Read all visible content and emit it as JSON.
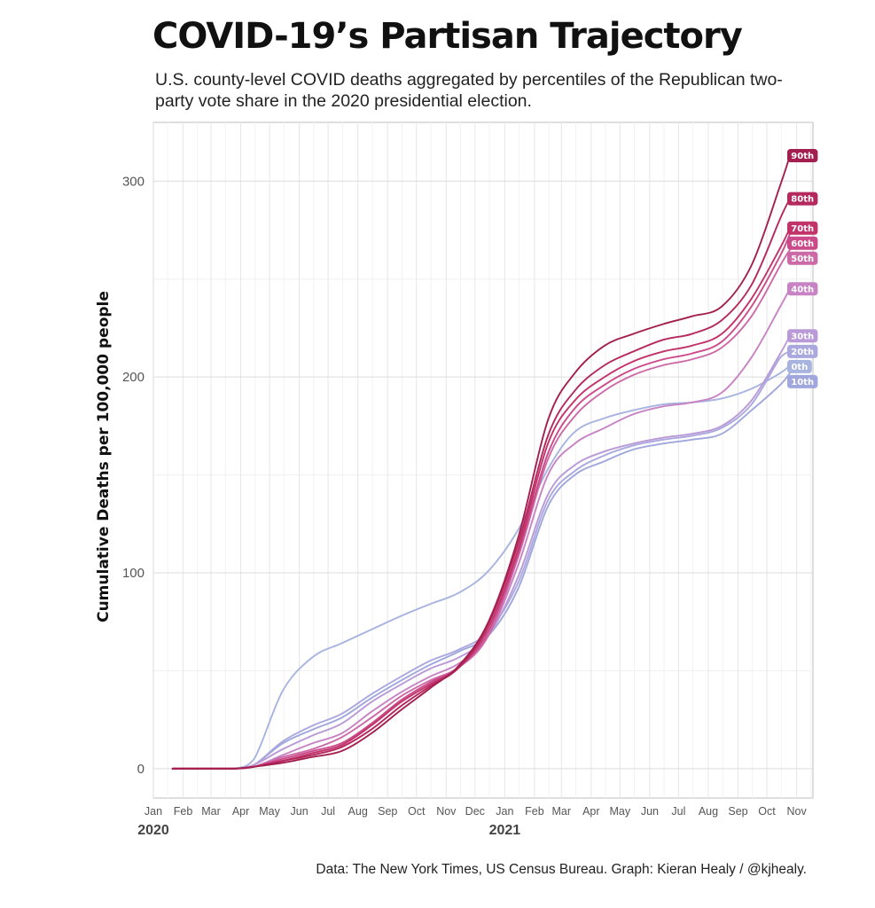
{
  "chart_data": {
    "type": "line",
    "title": "COVID-19’s Partisan Trajectory",
    "subtitle": "U.S. county-level COVID deaths aggregated by percentiles of the Republican two-party vote share in the 2020 presidential election.",
    "xlabel": "",
    "ylabel": "Cumulative Deaths per 100,000 people",
    "caption": "Data: The New York Times, US Census Bureau. Graph: Kieran Healy / @kjhealy.",
    "ylim": [
      -15,
      330
    ],
    "xlim": [
      "2020-01-01",
      "2021-11-18"
    ],
    "grid": true,
    "legend": "direct labels at line ends (right)",
    "y_ticks": [
      0,
      100,
      200,
      300
    ],
    "x_ticks": [
      {
        "date": "2020-01-01",
        "label": "Jan"
      },
      {
        "date": "2020-02-01",
        "label": "Feb"
      },
      {
        "date": "2020-03-01",
        "label": "Mar"
      },
      {
        "date": "2020-04-01",
        "label": "Apr"
      },
      {
        "date": "2020-05-01",
        "label": "May"
      },
      {
        "date": "2020-06-01",
        "label": "Jun"
      },
      {
        "date": "2020-07-01",
        "label": "Jul"
      },
      {
        "date": "2020-08-01",
        "label": "Aug"
      },
      {
        "date": "2020-09-01",
        "label": "Sep"
      },
      {
        "date": "2020-10-01",
        "label": "Oct"
      },
      {
        "date": "2020-11-01",
        "label": "Nov"
      },
      {
        "date": "2020-12-01",
        "label": "Dec"
      },
      {
        "date": "2021-01-01",
        "label": "Jan"
      },
      {
        "date": "2021-02-01",
        "label": "Feb"
      },
      {
        "date": "2021-03-01",
        "label": "Mar"
      },
      {
        "date": "2021-04-01",
        "label": "Apr"
      },
      {
        "date": "2021-05-01",
        "label": "May"
      },
      {
        "date": "2021-06-01",
        "label": "Jun"
      },
      {
        "date": "2021-07-01",
        "label": "Jul"
      },
      {
        "date": "2021-08-01",
        "label": "Aug"
      },
      {
        "date": "2021-09-01",
        "label": "Sep"
      },
      {
        "date": "2021-10-01",
        "label": "Oct"
      },
      {
        "date": "2021-11-01",
        "label": "Nov"
      }
    ],
    "year_labels": [
      {
        "date": "2020-01-01",
        "label": "2020"
      },
      {
        "date": "2021-01-01",
        "label": "2021"
      }
    ],
    "x": [
      "2020-01-21",
      "2020-03-01",
      "2020-03-25",
      "2020-04-15",
      "2020-05-15",
      "2020-06-15",
      "2020-07-15",
      "2020-08-15",
      "2020-09-15",
      "2020-10-15",
      "2020-11-15",
      "2020-12-15",
      "2021-01-15",
      "2021-02-15",
      "2021-03-15",
      "2021-04-15",
      "2021-05-15",
      "2021-06-15",
      "2021-07-15",
      "2021-08-15",
      "2021-09-15",
      "2021-10-15",
      "2021-10-25"
    ],
    "series": [
      {
        "name": "90th",
        "color": "#a3204e",
        "values": [
          0,
          0,
          0,
          1,
          3,
          6,
          9,
          18,
          30,
          41,
          53,
          75,
          118,
          178,
          202,
          216,
          222,
          227,
          231,
          236,
          257,
          298,
          313
        ]
      },
      {
        "name": "80th",
        "color": "#b5285e",
        "values": [
          0,
          0,
          0,
          1,
          4,
          7,
          11,
          20,
          32,
          42,
          52,
          74,
          115,
          170,
          193,
          206,
          213,
          219,
          222,
          229,
          247,
          281,
          291
        ]
      },
      {
        "name": "70th",
        "color": "#c2336a",
        "values": [
          0,
          0,
          0,
          1,
          4,
          8,
          12,
          22,
          34,
          43,
          52,
          72,
          112,
          166,
          188,
          200,
          208,
          213,
          216,
          222,
          240,
          266,
          276
        ]
      },
      {
        "name": "60th",
        "color": "#cb4a8a",
        "values": [
          0,
          0,
          0,
          1,
          5,
          9,
          13,
          23,
          35,
          44,
          52,
          70,
          110,
          161,
          184,
          196,
          204,
          209,
          212,
          218,
          236,
          262,
          273
        ]
      },
      {
        "name": "50th",
        "color": "#cc6aa8",
        "values": [
          0,
          0,
          0,
          1,
          6,
          10,
          16,
          26,
          37,
          45,
          52,
          68,
          108,
          158,
          180,
          193,
          201,
          206,
          209,
          215,
          231,
          257,
          265
        ]
      },
      {
        "name": "40th",
        "color": "#c783c4",
        "values": [
          0,
          0,
          0,
          1,
          7,
          13,
          18,
          29,
          39,
          47,
          54,
          68,
          104,
          150,
          166,
          174,
          181,
          185,
          187,
          192,
          210,
          236,
          245
        ]
      },
      {
        "name": "30th",
        "color": "#b99ad6",
        "values": [
          0,
          0,
          0,
          2,
          10,
          17,
          23,
          34,
          43,
          51,
          57,
          68,
          98,
          140,
          155,
          162,
          166,
          169,
          171,
          175,
          188,
          212,
          221
        ]
      },
      {
        "name": "20th",
        "color": "#aaa8de",
        "values": [
          0,
          0,
          0,
          2,
          14,
          22,
          28,
          38,
          47,
          55,
          61,
          70,
          95,
          137,
          152,
          160,
          165,
          168,
          170,
          174,
          186,
          210,
          213
        ]
      },
      {
        "name": "10th",
        "color": "#9fa7dc",
        "values": [
          0,
          0,
          0,
          2,
          13,
          20,
          26,
          36,
          45,
          53,
          60,
          68,
          92,
          134,
          150,
          157,
          163,
          166,
          168,
          171,
          183,
          196,
          202
        ]
      },
      {
        "name": "0th",
        "color": "#a8b4e0",
        "values": [
          0,
          0,
          0,
          5,
          40,
          57,
          64,
          71,
          78,
          84,
          90,
          101,
          122,
          153,
          172,
          179,
          183,
          186,
          187,
          189,
          194,
          202,
          206
        ]
      }
    ]
  }
}
